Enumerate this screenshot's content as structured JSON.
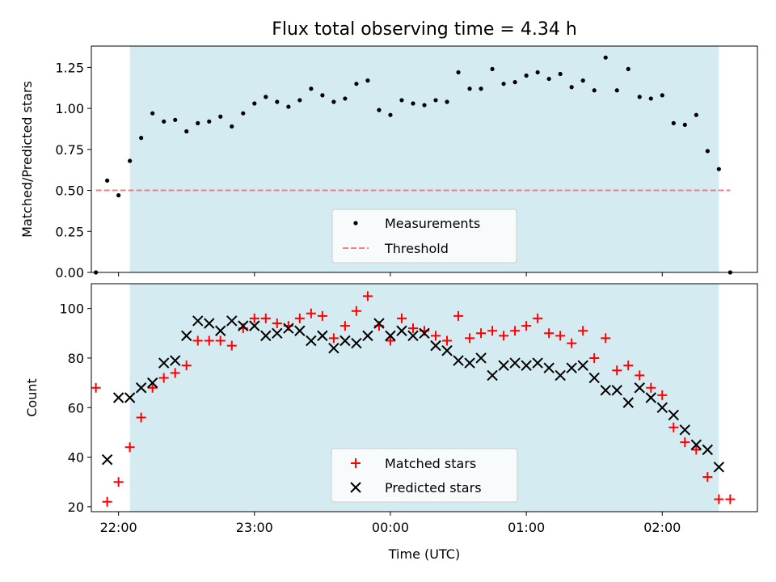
{
  "chart_data": [
    {
      "type": "scatter",
      "title": "Flux total observing time = 4.34 h",
      "ylabel": "Matched/Predicted stars",
      "xlabel": "",
      "xlim": [
        "21:48",
        "02:42"
      ],
      "ylim": [
        0,
        1.38
      ],
      "yticks": [
        "0.00",
        "0.25",
        "0.50",
        "0.75",
        "1.00",
        "1.25"
      ],
      "xticks": [
        "22:00",
        "23:00",
        "00:00",
        "01:00",
        "02:00"
      ],
      "shaded_interval": [
        "22:05",
        "02:25"
      ],
      "shade_color": "#d4ebf1",
      "threshold": {
        "name": "Threshold",
        "value": 0.5,
        "x_range": [
          "21:50",
          "02:30"
        ],
        "color": "#f08080"
      },
      "legend": {
        "placement": "lower center",
        "entries": [
          "Measurements",
          "Threshold"
        ]
      },
      "series": [
        {
          "name": "Measurements",
          "marker": "dot",
          "color": "#000000",
          "x": [
            "21:50",
            "21:55",
            "22:00",
            "22:05",
            "22:10",
            "22:15",
            "22:20",
            "22:25",
            "22:30",
            "22:35",
            "22:40",
            "22:45",
            "22:50",
            "22:55",
            "23:00",
            "23:05",
            "23:10",
            "23:15",
            "23:20",
            "23:25",
            "23:30",
            "23:35",
            "23:40",
            "23:45",
            "23:50",
            "23:55",
            "00:00",
            "00:05",
            "00:10",
            "00:15",
            "00:20",
            "00:25",
            "00:30",
            "00:35",
            "00:40",
            "00:45",
            "00:50",
            "00:55",
            "01:00",
            "01:05",
            "01:10",
            "01:15",
            "01:20",
            "01:25",
            "01:30",
            "01:35",
            "01:40",
            "01:45",
            "01:50",
            "01:55",
            "02:00",
            "02:05",
            "02:10",
            "02:15",
            "02:20",
            "02:25",
            "02:30"
          ],
          "y": [
            0.0,
            0.56,
            0.47,
            0.68,
            0.82,
            0.97,
            0.92,
            0.93,
            0.86,
            0.91,
            0.92,
            0.95,
            0.89,
            0.97,
            1.03,
            1.07,
            1.04,
            1.01,
            1.05,
            1.12,
            1.08,
            1.04,
            1.06,
            1.15,
            1.17,
            0.99,
            0.96,
            1.05,
            1.03,
            1.02,
            1.05,
            1.04,
            1.22,
            1.12,
            1.12,
            1.24,
            1.15,
            1.16,
            1.2,
            1.22,
            1.18,
            1.21,
            1.13,
            1.17,
            1.11,
            1.31,
            1.11,
            1.24,
            1.07,
            1.06,
            1.08,
            0.91,
            0.9,
            0.96,
            0.74,
            0.63,
            0.0
          ]
        }
      ]
    },
    {
      "type": "scatter",
      "title": "",
      "ylabel": "Count",
      "xlabel": "Time (UTC)",
      "xlim": [
        "21:48",
        "02:42"
      ],
      "ylim": [
        18,
        110
      ],
      "yticks": [
        "20",
        "40",
        "60",
        "80",
        "100"
      ],
      "xticks": [
        "22:00",
        "23:00",
        "00:00",
        "01:00",
        "02:00"
      ],
      "shaded_interval": [
        "22:05",
        "02:25"
      ],
      "shade_color": "#d4ebf1",
      "legend": {
        "placement": "lower center",
        "entries": [
          "Matched stars",
          "Predicted stars"
        ]
      },
      "series": [
        {
          "name": "Matched stars",
          "marker": "plus",
          "color": "#ff0000",
          "x": [
            "21:50",
            "21:55",
            "22:00",
            "22:05",
            "22:10",
            "22:15",
            "22:20",
            "22:25",
            "22:30",
            "22:35",
            "22:40",
            "22:45",
            "22:50",
            "22:55",
            "23:00",
            "23:05",
            "23:10",
            "23:15",
            "23:20",
            "23:25",
            "23:30",
            "23:35",
            "23:40",
            "23:45",
            "23:50",
            "23:55",
            "00:00",
            "00:05",
            "00:10",
            "00:15",
            "00:20",
            "00:25",
            "00:30",
            "00:35",
            "00:40",
            "00:45",
            "00:50",
            "00:55",
            "01:00",
            "01:05",
            "01:10",
            "01:15",
            "01:20",
            "01:25",
            "01:30",
            "01:35",
            "01:40",
            "01:45",
            "01:50",
            "01:55",
            "02:00",
            "02:05",
            "02:10",
            "02:15",
            "02:20",
            "02:25",
            "02:30"
          ],
          "y": [
            68,
            22,
            30,
            44,
            56,
            68,
            72,
            74,
            77,
            87,
            87,
            87,
            85,
            92,
            96,
            96,
            94,
            93,
            96,
            98,
            97,
            88,
            93,
            99,
            105,
            93,
            87,
            96,
            92,
            91,
            89,
            87,
            97,
            88,
            90,
            91,
            89,
            91,
            93,
            96,
            90,
            89,
            86,
            91,
            80,
            88,
            75,
            77,
            73,
            68,
            65,
            52,
            46,
            43,
            32,
            23,
            23
          ]
        },
        {
          "name": "Predicted stars",
          "marker": "x",
          "color": "#000000",
          "x": [
            "21:55",
            "22:00",
            "22:05",
            "22:10",
            "22:15",
            "22:20",
            "22:25",
            "22:30",
            "22:35",
            "22:40",
            "22:45",
            "22:50",
            "22:55",
            "23:00",
            "23:05",
            "23:10",
            "23:15",
            "23:20",
            "23:25",
            "23:30",
            "23:35",
            "23:40",
            "23:45",
            "23:50",
            "23:55",
            "00:00",
            "00:05",
            "00:10",
            "00:15",
            "00:20",
            "00:25",
            "00:30",
            "00:35",
            "00:40",
            "00:45",
            "00:50",
            "00:55",
            "01:00",
            "01:05",
            "01:10",
            "01:15",
            "01:20",
            "01:25",
            "01:30",
            "01:35",
            "01:40",
            "01:45",
            "01:50",
            "01:55",
            "02:00",
            "02:05",
            "02:10",
            "02:15",
            "02:20",
            "02:25"
          ],
          "y": [
            39,
            64,
            64,
            68,
            70,
            78,
            79,
            89,
            95,
            94,
            91,
            95,
            93,
            93,
            89,
            90,
            92,
            91,
            87,
            89,
            84,
            87,
            86,
            89,
            94,
            89,
            91,
            89,
            90,
            85,
            83,
            79,
            78,
            80,
            73,
            77,
            78,
            77,
            78,
            76,
            73,
            76,
            77,
            72,
            67,
            67,
            62,
            68,
            64,
            60,
            57,
            51,
            45,
            43,
            36
          ]
        }
      ]
    }
  ]
}
